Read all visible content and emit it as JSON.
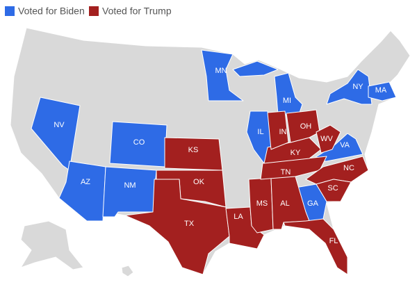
{
  "legend": [
    {
      "name": "Voted for Biden",
      "color": "#2e6be6",
      "states": [
        "NV",
        "AZ",
        "NM",
        "CO",
        "MN",
        "MI",
        "IL",
        "NY",
        "MA",
        "VA",
        "GA"
      ]
    },
    {
      "name": "Voted for Trump",
      "color": "#a3201f",
      "states": [
        "KS",
        "OK",
        "TX",
        "LA",
        "MS",
        "AL",
        "TN",
        "KY",
        "IN",
        "OH",
        "WV",
        "NC",
        "SC",
        "FL"
      ]
    }
  ]
}
